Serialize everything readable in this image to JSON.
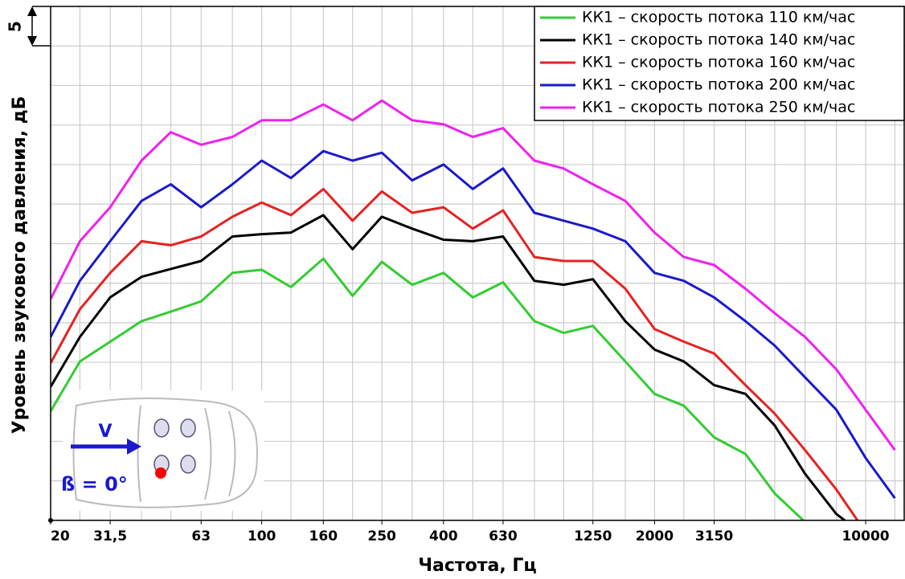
{
  "chart_data": {
    "type": "line",
    "x_label": "Частота, Гц",
    "y_label": "Уровень звукового давления, дБ",
    "annotations": {
      "scale": "5",
      "velocity": "V",
      "angle": "ß = 0°"
    },
    "log_x": true,
    "grid": true,
    "legend": "upper right",
    "xlim": [
      20,
      13500
    ],
    "ylim": [
      0,
      65
    ],
    "xticks": [
      20,
      {
        "value": 31.5,
        "label": "31,5"
      },
      63,
      100,
      160,
      250,
      400,
      630,
      1250,
      2000,
      3150,
      10000
    ],
    "xgrid": [
      20,
      25,
      31.5,
      40,
      50,
      63,
      80,
      100,
      125,
      160,
      200,
      250,
      315,
      400,
      500,
      630,
      800,
      1000,
      1250,
      1600,
      2000,
      2500,
      3150,
      4000,
      5000,
      6300,
      8000,
      10000,
      12500
    ],
    "yticks": [
      0,
      5,
      10,
      15,
      20,
      25,
      30,
      35,
      40,
      45,
      50,
      55,
      60,
      65
    ],
    "x": [
      20,
      25,
      31.5,
      40,
      50,
      63,
      80,
      100,
      125,
      160,
      200,
      250,
      315,
      400,
      500,
      630,
      800,
      1000,
      1250,
      1600,
      2000,
      2500,
      3150,
      4000,
      5000,
      6300,
      8000,
      10000,
      12500
    ],
    "series": [
      {
        "name": "КК1 – скорость потока 110 км/час",
        "color": "#33cc33",
        "values": [
          13.8,
          20.1,
          22.6,
          25.2,
          26.4,
          27.7,
          31.3,
          31.7,
          29.5,
          33.1,
          28.4,
          32.7,
          29.8,
          31.3,
          28.2,
          30.1,
          25.2,
          23.7,
          24.6,
          20.1,
          16.0,
          14.5,
          10.5,
          8.4,
          3.4,
          -0.2,
          null,
          null,
          null
        ]
      },
      {
        "name": "КК1 – скорость потока 140 км/час",
        "color": "#000000",
        "values": [
          16.9,
          23.2,
          28.2,
          30.8,
          31.8,
          32.8,
          35.9,
          36.2,
          36.4,
          38.6,
          34.3,
          38.4,
          36.9,
          35.5,
          35.3,
          35.9,
          30.3,
          29.8,
          30.5,
          25.2,
          21.6,
          20.1,
          17.1,
          16.0,
          12.0,
          5.9,
          0.8,
          -2,
          null
        ]
      },
      {
        "name": "КК1 – скорость потока 160 км/час",
        "color": "#e62222",
        "values": [
          19.9,
          26.7,
          31.3,
          35.3,
          34.8,
          35.9,
          38.4,
          40.2,
          38.6,
          41.9,
          37.9,
          41.6,
          38.9,
          39.6,
          36.9,
          39.2,
          33.3,
          32.8,
          32.8,
          29.3,
          24.2,
          22.6,
          21.1,
          17.1,
          13.5,
          8.9,
          3.9,
          -1.5,
          null
        ]
      },
      {
        "name": "КК1 – скорость потока 200 км/час",
        "color": "#1a1acc",
        "values": [
          23.2,
          30.3,
          35.3,
          40.4,
          42.5,
          39.6,
          42.5,
          45.5,
          43.3,
          46.7,
          45.5,
          46.5,
          43.0,
          45.0,
          41.9,
          44.5,
          38.9,
          37.9,
          36.9,
          35.3,
          31.3,
          30.3,
          28.2,
          25.2,
          22.1,
          18.1,
          14.0,
          7.9,
          2.8
        ]
      },
      {
        "name": "КК1 – скорость потока 250 км/час",
        "color": "#ee22ee",
        "values": [
          28.0,
          35.3,
          39.6,
          45.5,
          49.1,
          47.5,
          48.5,
          50.6,
          50.6,
          52.6,
          50.6,
          53.1,
          50.6,
          50.1,
          48.5,
          49.6,
          45.5,
          44.5,
          42.5,
          40.4,
          36.4,
          33.3,
          32.3,
          29.3,
          26.2,
          23.2,
          19.1,
          14.0,
          8.9
        ]
      }
    ]
  }
}
